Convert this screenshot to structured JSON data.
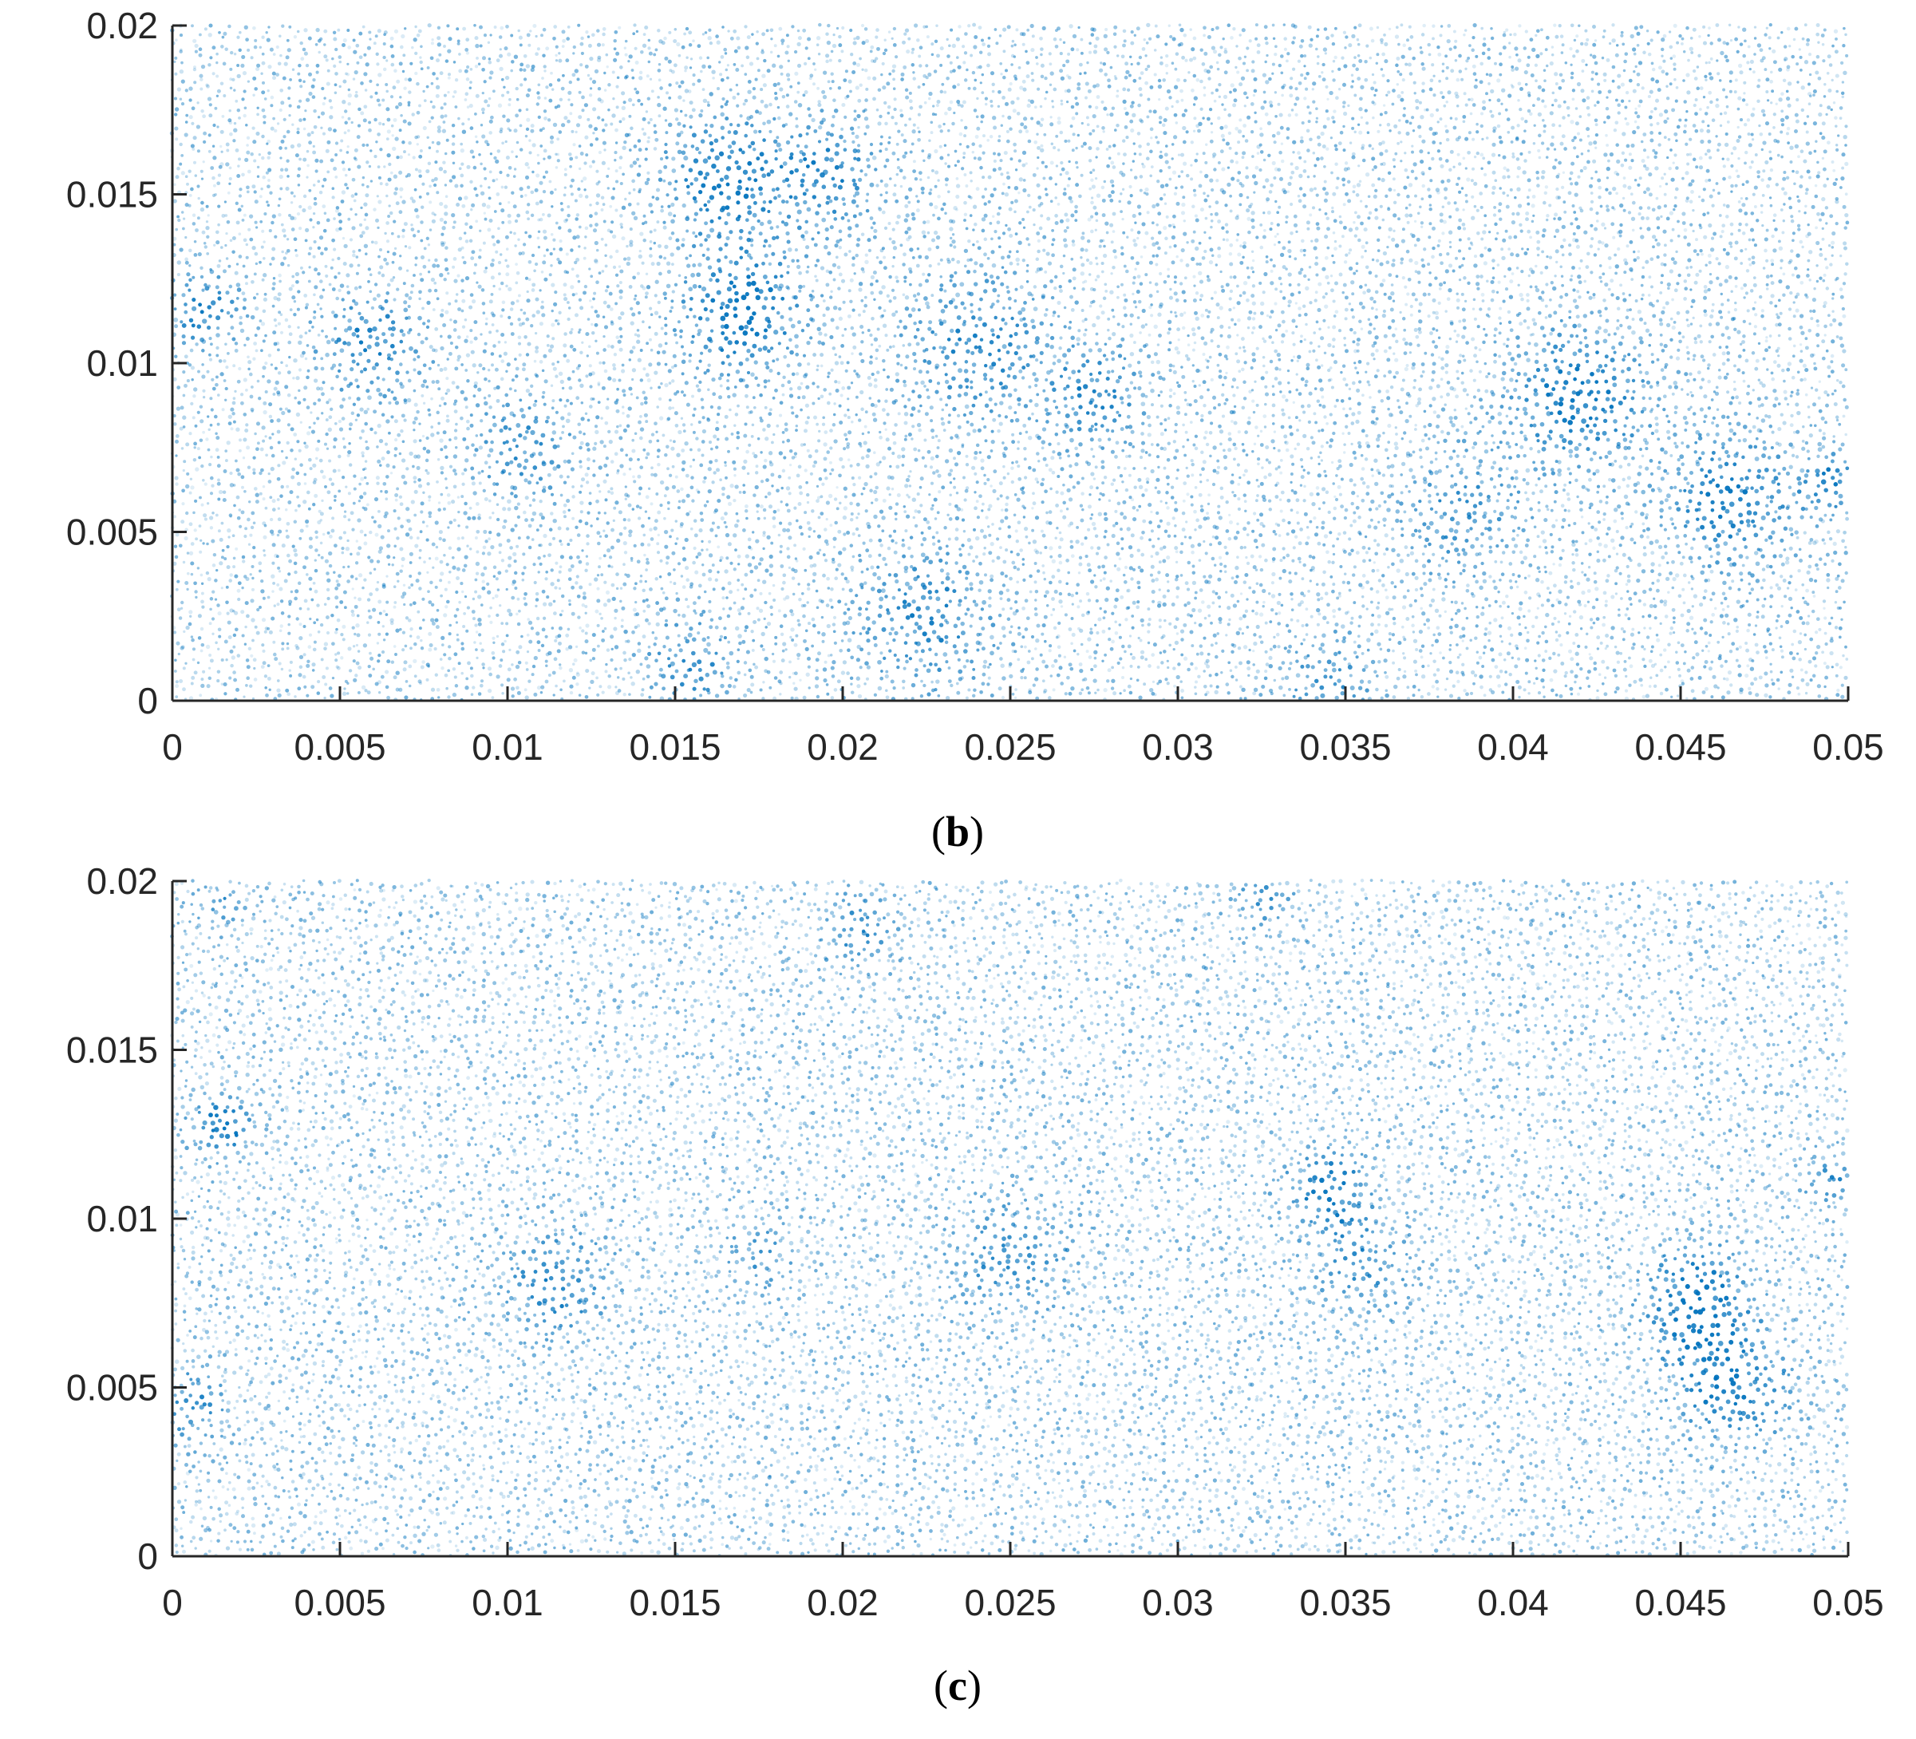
{
  "chart_data": [
    {
      "type": "scatter",
      "panel_label": "b",
      "title": "",
      "xlabel": "",
      "ylabel": "",
      "xlim": [
        0,
        0.05
      ],
      "ylim": [
        0,
        0.02
      ],
      "xticks": [
        "0",
        "0.005",
        "0.01",
        "0.015",
        "0.02",
        "0.025",
        "0.03",
        "0.035",
        "0.04",
        "0.045",
        "0.05"
      ],
      "yticks": [
        "0",
        "0.005",
        "0.01",
        "0.015",
        "0.02"
      ],
      "marker_color": "#0072bd",
      "clusters": [
        {
          "x": 0.017,
          "y": 0.0115,
          "spread": 0.0012,
          "density": 1.0
        },
        {
          "x": 0.0165,
          "y": 0.0155,
          "spread": 0.0012,
          "density": 0.9
        },
        {
          "x": 0.0195,
          "y": 0.0155,
          "spread": 0.001,
          "density": 0.8
        },
        {
          "x": 0.024,
          "y": 0.0105,
          "spread": 0.0014,
          "density": 0.7
        },
        {
          "x": 0.0275,
          "y": 0.009,
          "spread": 0.001,
          "density": 0.7
        },
        {
          "x": 0.042,
          "y": 0.009,
          "spread": 0.0013,
          "density": 1.0
        },
        {
          "x": 0.0465,
          "y": 0.006,
          "spread": 0.0012,
          "density": 0.9
        },
        {
          "x": 0.0495,
          "y": 0.0065,
          "spread": 0.0006,
          "density": 0.9
        },
        {
          "x": 0.006,
          "y": 0.0105,
          "spread": 0.001,
          "density": 0.8
        },
        {
          "x": 0.001,
          "y": 0.0115,
          "spread": 0.0007,
          "density": 0.8
        },
        {
          "x": 0.0105,
          "y": 0.0075,
          "spread": 0.001,
          "density": 0.6
        },
        {
          "x": 0.0225,
          "y": 0.0025,
          "spread": 0.0014,
          "density": 0.7
        },
        {
          "x": 0.0155,
          "y": 0.001,
          "spread": 0.001,
          "density": 0.6
        },
        {
          "x": 0.0385,
          "y": 0.0055,
          "spread": 0.0012,
          "density": 0.6
        },
        {
          "x": 0.0345,
          "y": 0.0005,
          "spread": 0.001,
          "density": 0.5
        }
      ]
    },
    {
      "type": "scatter",
      "panel_label": "c",
      "title": "",
      "xlabel": "",
      "ylabel": "",
      "xlim": [
        0,
        0.05
      ],
      "ylim": [
        0,
        0.02
      ],
      "xticks": [
        "0",
        "0.005",
        "0.01",
        "0.015",
        "0.02",
        "0.025",
        "0.03",
        "0.035",
        "0.04",
        "0.045",
        "0.05"
      ],
      "yticks": [
        "0",
        "0.005",
        "0.01",
        "0.015",
        "0.02"
      ],
      "marker_color": "#0072bd",
      "clusters": [
        {
          "x": 0.0015,
          "y": 0.0128,
          "spread": 0.0006,
          "density": 1.0
        },
        {
          "x": 0.0005,
          "y": 0.0045,
          "spread": 0.0007,
          "density": 0.7
        },
        {
          "x": 0.0115,
          "y": 0.008,
          "spread": 0.0011,
          "density": 0.7
        },
        {
          "x": 0.025,
          "y": 0.0088,
          "spread": 0.0012,
          "density": 0.6
        },
        {
          "x": 0.0345,
          "y": 0.0108,
          "spread": 0.0009,
          "density": 0.9
        },
        {
          "x": 0.0355,
          "y": 0.0085,
          "spread": 0.0009,
          "density": 0.6
        },
        {
          "x": 0.0455,
          "y": 0.0075,
          "spread": 0.0011,
          "density": 1.0
        },
        {
          "x": 0.0465,
          "y": 0.005,
          "spread": 0.0011,
          "density": 0.9
        },
        {
          "x": 0.0205,
          "y": 0.0185,
          "spread": 0.0007,
          "density": 0.6
        },
        {
          "x": 0.0495,
          "y": 0.0112,
          "spread": 0.0005,
          "density": 0.7
        },
        {
          "x": 0.0175,
          "y": 0.009,
          "spread": 0.0007,
          "density": 0.5
        },
        {
          "x": 0.0325,
          "y": 0.0195,
          "spread": 0.0006,
          "density": 0.5
        },
        {
          "x": 0.0015,
          "y": 0.0193,
          "spread": 0.0005,
          "density": 0.6
        }
      ]
    }
  ]
}
